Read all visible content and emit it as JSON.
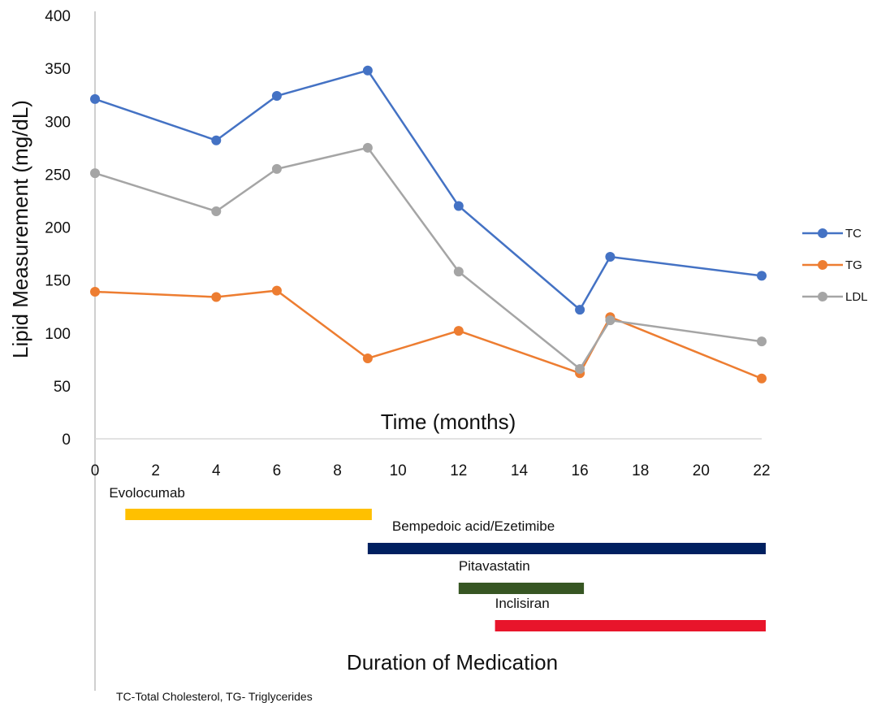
{
  "chart_data": {
    "type": "line",
    "ylabel": "Lipid Measurement (mg/dL)",
    "xlabel": "Time (months)",
    "ylim": [
      0,
      400
    ],
    "xlim": [
      0,
      22
    ],
    "yticks": [
      0,
      50,
      100,
      150,
      200,
      250,
      300,
      350,
      400
    ],
    "xticks": [
      0,
      2,
      4,
      6,
      8,
      10,
      12,
      14,
      16,
      18,
      20,
      22
    ],
    "x": [
      0,
      4,
      6,
      9,
      12,
      16,
      17,
      22
    ],
    "series": [
      {
        "name": "TC",
        "color": "#4472C4",
        "values": [
          321,
          282,
          324,
          348,
          220,
          122,
          172,
          154
        ]
      },
      {
        "name": "TG",
        "color": "#ED7D31",
        "values": [
          139,
          134,
          140,
          76,
          102,
          62,
          115,
          57
        ]
      },
      {
        "name": "LDL",
        "color": "#A5A5A5",
        "values": [
          251,
          215,
          255,
          275,
          158,
          66,
          112,
          92
        ]
      }
    ],
    "legend_position": "right",
    "grid": false
  },
  "medication": {
    "title": "Duration of Medication",
    "bars": [
      {
        "label": "Evolocumab",
        "start": 1,
        "end": 9,
        "color": "#FFC000"
      },
      {
        "label": "Bempedoic acid/Ezetimibe",
        "start": 9,
        "end": 22,
        "color": "#002060"
      },
      {
        "label": "Pitavastatin",
        "start": 12,
        "end": 16,
        "color": "#375623"
      },
      {
        "label": "Inclisiran",
        "start": 13.2,
        "end": 22,
        "color": "#E8152B"
      }
    ]
  },
  "footnote": "TC-Total Cholesterol, TG- Triglycerides"
}
